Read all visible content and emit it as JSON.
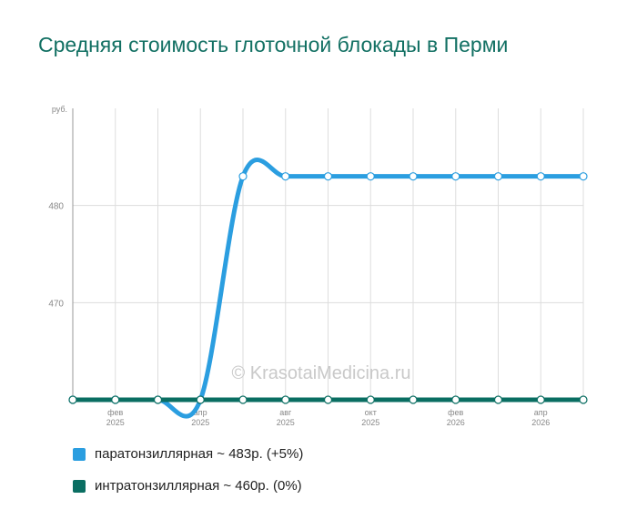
{
  "title": "Средняя стоимость глоточной блокады в Перми",
  "watermark": "© KrasotaiMedicina.ru",
  "colors": {
    "background": "#ffffff",
    "title": "#127063",
    "grid": "#dddddd",
    "axis": "#999999"
  },
  "legend": [
    {
      "label": "паратонзиллярная ~ 483р. (+5%)",
      "color": "#2b9ee0"
    },
    {
      "label": "интратонзиллярная ~ 460р. (0%)",
      "color": "#0a6e62"
    }
  ],
  "chart_data": {
    "type": "line",
    "y_unit_label": "руб.",
    "y_ticks": [
      470,
      480
    ],
    "ylim": [
      460,
      490
    ],
    "x": [
      "2025-01",
      "2025-02",
      "2025-03",
      "2025-04",
      "2025-05",
      "2025-06",
      "2025-07",
      "2025-08",
      "2025-09",
      "2025-10",
      "2025-11",
      "2025-12",
      "2026-01"
    ],
    "x_ticks": [
      {
        "label": [
          "фев",
          "2025"
        ]
      },
      {
        "label": [
          "апр",
          "2025"
        ]
      },
      {
        "label": [
          "авг",
          "2025"
        ]
      },
      {
        "label": [
          "окт",
          "2025"
        ]
      },
      {
        "label": [
          "фев",
          "2026"
        ]
      },
      {
        "label": [
          "апр",
          "2026"
        ]
      }
    ],
    "grid": true,
    "series": [
      {
        "name": "паратонзиллярная",
        "color": "#2b9ee0",
        "values": [
          460,
          460,
          460,
          460,
          483,
          483,
          483,
          483,
          483,
          483,
          483,
          483,
          483
        ]
      },
      {
        "name": "интратонзиллярная",
        "color": "#0a6e62",
        "values": [
          460,
          460,
          460,
          460,
          460,
          460,
          460,
          460,
          460,
          460,
          460,
          460,
          460
        ]
      }
    ]
  }
}
